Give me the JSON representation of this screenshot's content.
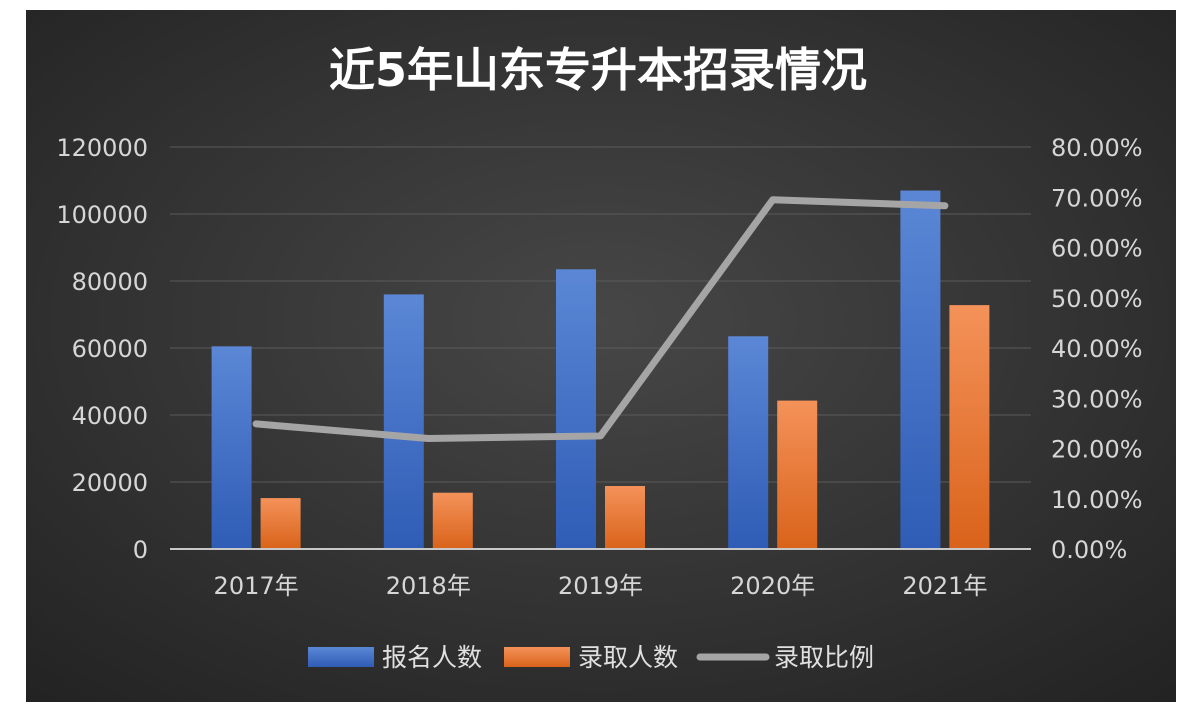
{
  "chart_data": {
    "type": "bar",
    "title": "近5年山东专升本招录情况",
    "categories": [
      "2017年",
      "2018年",
      "2019年",
      "2020年",
      "2021年"
    ],
    "series": [
      {
        "name": "报名人数",
        "type": "bar",
        "axis": "left",
        "color": "#4472c4",
        "values": [
          60500,
          76000,
          83500,
          63500,
          107000
        ]
      },
      {
        "name": "录取人数",
        "type": "bar",
        "axis": "left",
        "color": "#ed7d31",
        "values": [
          15200,
          16800,
          18800,
          44300,
          72800
        ]
      },
      {
        "name": "录取比例",
        "type": "line",
        "axis": "right",
        "color": "#a5a5a5",
        "values": [
          24.9,
          22.0,
          22.5,
          69.5,
          68.3
        ]
      }
    ],
    "y_left": {
      "ylim": [
        0,
        120000
      ],
      "ticks": [
        "0",
        "20000",
        "40000",
        "60000",
        "80000",
        "100000",
        "120000"
      ]
    },
    "y_right": {
      "ylim": [
        0,
        80
      ],
      "ticks": [
        "0.00%",
        "10.00%",
        "20.00%",
        "30.00%",
        "40.00%",
        "50.00%",
        "60.00%",
        "70.00%",
        "80.00%"
      ]
    },
    "grid": true,
    "legend_position": "bottom",
    "background": "#3a3a3a"
  }
}
